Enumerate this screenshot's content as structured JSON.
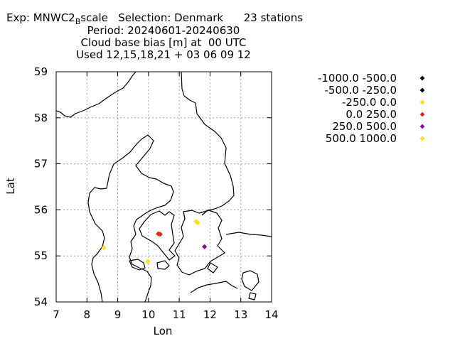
{
  "header": {
    "exp_prefix": "Exp: MNWC2",
    "exp_sub": "B",
    "exp_suffix": "scale   Selection: Denmark      23 stations",
    "period": "Period: 20240601-20240630",
    "variable": "Cloud base bias [m] at  00 UTC",
    "used": "Used 12,15,18,21 + 03 06 09 12"
  },
  "chart_data": {
    "type": "scatter",
    "title": "Cloud base bias [m] at  00 UTC",
    "xlabel": "Lon",
    "ylabel": "Lat",
    "xlim": [
      7,
      14
    ],
    "ylim": [
      54,
      59
    ],
    "xticks": [
      "7",
      "8",
      "9",
      "10",
      "11",
      "12",
      "13",
      "14"
    ],
    "yticks": [
      "54",
      "55",
      "56",
      "57",
      "58",
      "59"
    ],
    "grid": true,
    "legend_position": "right",
    "legend": [
      {
        "label": "-1000.0 -500.0",
        "color": "#000000"
      },
      {
        "label": "-500.0 -250.0",
        "color": "#000000"
      },
      {
        "label": "-250.0 0.0",
        "color": "#f5e218"
      },
      {
        "label": "0.0 250.0",
        "color": "#e8231c"
      },
      {
        "label": "250.0 500.0",
        "color": "#8a0ab8"
      },
      {
        "label": "500.0 1000.0",
        "color": "#f5e218"
      }
    ],
    "points": [
      {
        "lon": 8.55,
        "lat": 55.18,
        "cls": 2
      },
      {
        "lon": 9.98,
        "lat": 54.88,
        "cls": 2
      },
      {
        "lon": 10.32,
        "lat": 55.48,
        "cls": 3
      },
      {
        "lon": 10.38,
        "lat": 55.47,
        "cls": 3
      },
      {
        "lon": 11.55,
        "lat": 55.75,
        "cls": 2
      },
      {
        "lon": 11.6,
        "lat": 55.72,
        "cls": 2
      },
      {
        "lon": 11.82,
        "lat": 55.2,
        "cls": 4
      }
    ]
  }
}
